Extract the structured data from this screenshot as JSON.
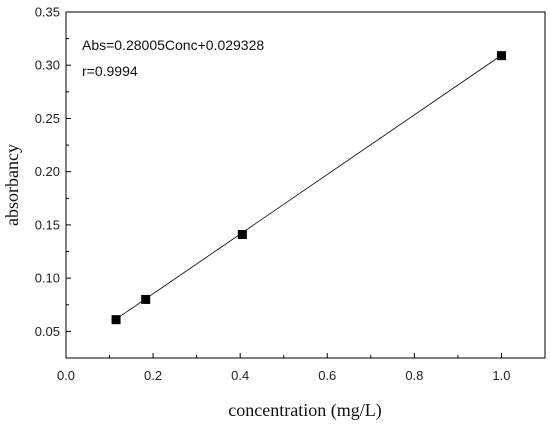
{
  "chart_data": {
    "type": "scatter",
    "title": "",
    "xlabel": "concentration (mg/L)",
    "ylabel": "absorbancy",
    "xlim": [
      0.0,
      1.1
    ],
    "ylim": [
      0.025,
      0.35
    ],
    "xticks": [
      0.0,
      0.2,
      0.4,
      0.6,
      0.8,
      1.0
    ],
    "xtick_labels": [
      "0.0",
      "0.2",
      "0.4",
      "0.6",
      "0.8",
      "1.0"
    ],
    "yticks": [
      0.05,
      0.1,
      0.15,
      0.2,
      0.25,
      0.3,
      0.35
    ],
    "ytick_labels": [
      "0.05",
      "0.10",
      "0.15",
      "0.20",
      "0.25",
      "0.30",
      "0.35"
    ],
    "grid": false,
    "legend": "none",
    "series": [
      {
        "marker": "square",
        "color": "#000000",
        "x": [
          0.115,
          0.183,
          0.405,
          1.0
        ],
        "y": [
          0.061,
          0.08,
          0.141,
          0.309
        ]
      }
    ],
    "fit_line": {
      "slope": 0.28005,
      "intercept": 0.029328,
      "x_range": [
        0.115,
        1.0
      ],
      "color": "#000000"
    },
    "annotations": [
      "Abs=0.28005Conc+0.029328",
      "r=0.9994"
    ]
  }
}
